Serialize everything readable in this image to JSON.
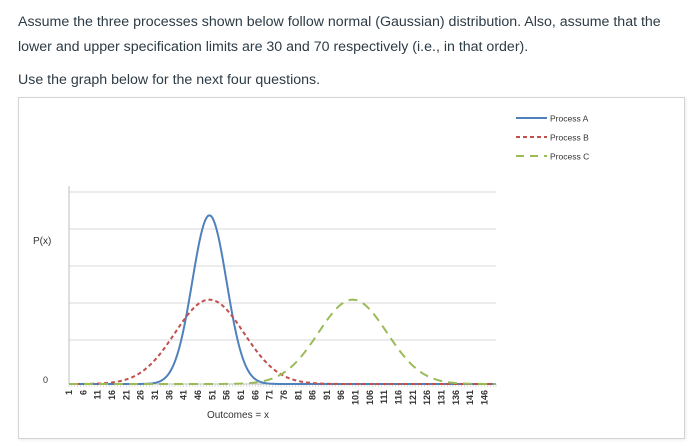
{
  "question": {
    "line1": "Assume the three processes shown below follow normal (Gaussian) distribution. Also, assume that the",
    "line2": "lower and upper specification limits are 30 and 70 respectively (i.e., in that order).",
    "line3": "Use the graph below for the next four questions."
  },
  "chart_data": {
    "type": "line",
    "ylabel": "P(x)",
    "xlabel": "Outcomes = x",
    "y_tick_labels": [
      "0"
    ],
    "x_tick_labels": [
      "1",
      "6",
      "11",
      "16",
      "21",
      "26",
      "31",
      "36",
      "41",
      "46",
      "51",
      "56",
      "61",
      "66",
      "71",
      "76",
      "81",
      "86",
      "91",
      "96",
      "101",
      "106",
      "111",
      "116",
      "121",
      "126",
      "131",
      "136",
      "141",
      "146"
    ],
    "x_range": [
      1,
      150
    ],
    "y_range": [
      0,
      1.15
    ],
    "grid": true,
    "legend_position": "top-right",
    "series": [
      {
        "name": "Process A",
        "color": "#4f81bd",
        "dash": "solid",
        "mean": 50,
        "sd": 6,
        "peak": 1.0
      },
      {
        "name": "Process B",
        "color": "#c0504d",
        "dash": "dashed",
        "mean": 50,
        "sd": 12,
        "peak": 0.5
      },
      {
        "name": "Process C",
        "color": "#9bbb59",
        "dash": "dashed",
        "mean": 100,
        "sd": 12,
        "peak": 0.5
      }
    ]
  }
}
